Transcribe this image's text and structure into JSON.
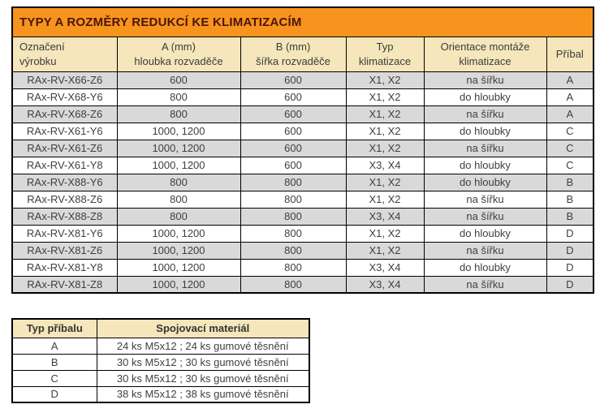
{
  "colors": {
    "title_bg": "#F7941E",
    "title_text": "#4C1509",
    "header_bg": "#F5E6BB",
    "row_alt_bg": "#D9D9D9",
    "row_bg": "#FFFFFF",
    "border": "#000000",
    "text": "#3F3F3F",
    "header_text": "#3B3B3B"
  },
  "main_table": {
    "title": "TYPY A ROZMĚRY REDUKCÍ KE KLIMATIZACÍM",
    "columns": [
      "Označení\nvýrobku",
      "A (mm)\nhloubka rozvaděče",
      "B (mm)\nšířka rozvaděče",
      "Typ\nklimatizace",
      "Orientace montáže\nklimatizace",
      "Příbal"
    ],
    "rows": [
      [
        "RAx-RV-X66-Z6",
        "600",
        "600",
        "X1, X2",
        "na šířku",
        "A"
      ],
      [
        "RAx-RV-X68-Y6",
        "800",
        "600",
        "X1, X2",
        "do hloubky",
        "A"
      ],
      [
        "RAx-RV-X68-Z6",
        "800",
        "600",
        "X1, X2",
        "na šířku",
        "A"
      ],
      [
        "RAx-RV-X61-Y6",
        "1000, 1200",
        "600",
        "X1, X2",
        "do hloubky",
        "C"
      ],
      [
        "RAx-RV-X61-Z6",
        "1000, 1200",
        "600",
        "X1, X2",
        "na šířku",
        "C"
      ],
      [
        "RAx-RV-X61-Y8",
        "1000, 1200",
        "600",
        "X3, X4",
        "do hloubky",
        "C"
      ],
      [
        "RAx-RV-X88-Y6",
        "800",
        "800",
        "X1, X2",
        "do hloubky",
        "B"
      ],
      [
        "RAx-RV-X88-Z6",
        "800",
        "800",
        "X1, X2",
        "na šířku",
        "B"
      ],
      [
        "RAx-RV-X88-Z8",
        "800",
        "800",
        "X3, X4",
        "na šířku",
        "B"
      ],
      [
        "RAx-RV-X81-Y6",
        "1000, 1200",
        "800",
        "X1, X2",
        "do hloubky",
        "D"
      ],
      [
        "RAx-RV-X81-Z6",
        "1000, 1200",
        "800",
        "X1, X2",
        "na šířku",
        "D"
      ],
      [
        "RAx-RV-X81-Y8",
        "1000, 1200",
        "800",
        "X3, X4",
        "do hloubky",
        "D"
      ],
      [
        "RAx-RV-X81-Z8",
        "1000, 1200",
        "800",
        "X3, X4",
        "na šířku",
        "D"
      ]
    ]
  },
  "accessory_table": {
    "headers": [
      "Typ příbalu",
      "Spojovací materiál"
    ],
    "rows": [
      [
        "A",
        "24 ks M5x12 ; 24 ks gumové těsnění"
      ],
      [
        "B",
        "30 ks M5x12 ; 30 ks gumové těsnění"
      ],
      [
        "C",
        "30 ks M5x12 ; 30 ks gumové těsnění"
      ],
      [
        "D",
        "38 ks M5x12 ; 38 ks gumové těsnění"
      ]
    ]
  }
}
